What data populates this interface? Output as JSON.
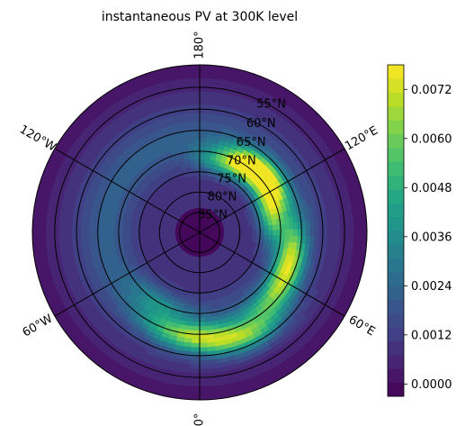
{
  "chart_data": {
    "type": "heatmap",
    "projection": "north-polar-stereographic",
    "title": "instantaneous PV at 300K level",
    "latitude_labels": [
      "85°N",
      "80°N",
      "75°N",
      "70°N",
      "65°N",
      "60°N",
      "55°N"
    ],
    "longitude_labels": [
      {
        "lon": 180,
        "text": "180°"
      },
      {
        "lon": 120,
        "text": "120°E"
      },
      {
        "lon": 60,
        "text": "60°E"
      },
      {
        "lon": 0,
        "text": "0°"
      },
      {
        "lon": -60,
        "text": "60°W"
      },
      {
        "lon": -120,
        "text": "120°W"
      }
    ],
    "lat_circles": [
      85,
      80,
      75,
      70,
      65,
      60,
      55
    ],
    "lat_range": [
      50,
      90
    ],
    "meridians": [
      0,
      60,
      120,
      180,
      240,
      300
    ],
    "colormap": "viridis",
    "colorbar": {
      "min": -0.0003,
      "max": 0.0078,
      "ticks": [
        0.0,
        0.0012,
        0.0024,
        0.0036,
        0.0048,
        0.006,
        0.0072
      ],
      "tick_labels": [
        "0.0000",
        "0.0012",
        "0.0024",
        "0.0036",
        "0.0048",
        "0.0060",
        "0.0072"
      ]
    },
    "field_features": [
      {
        "lat": 72,
        "lon": 105,
        "value": 0.0066
      },
      {
        "lat": 69,
        "lon": 130,
        "value": 0.0076
      },
      {
        "lat": 70,
        "lon": 140,
        "value": 0.006
      },
      {
        "lat": 72,
        "lon": 160,
        "value": 0.0055
      },
      {
        "lat": 67,
        "lon": 75,
        "value": 0.0066
      },
      {
        "lat": 66,
        "lon": 50,
        "value": 0.0052
      },
      {
        "lat": 62,
        "lon": 25,
        "value": 0.0058
      },
      {
        "lat": 64,
        "lon": 5,
        "value": 0.0056
      },
      {
        "lat": 65,
        "lon": -15,
        "value": 0.0046
      },
      {
        "lat": 70,
        "lon": -30,
        "value": 0.004
      }
    ]
  }
}
